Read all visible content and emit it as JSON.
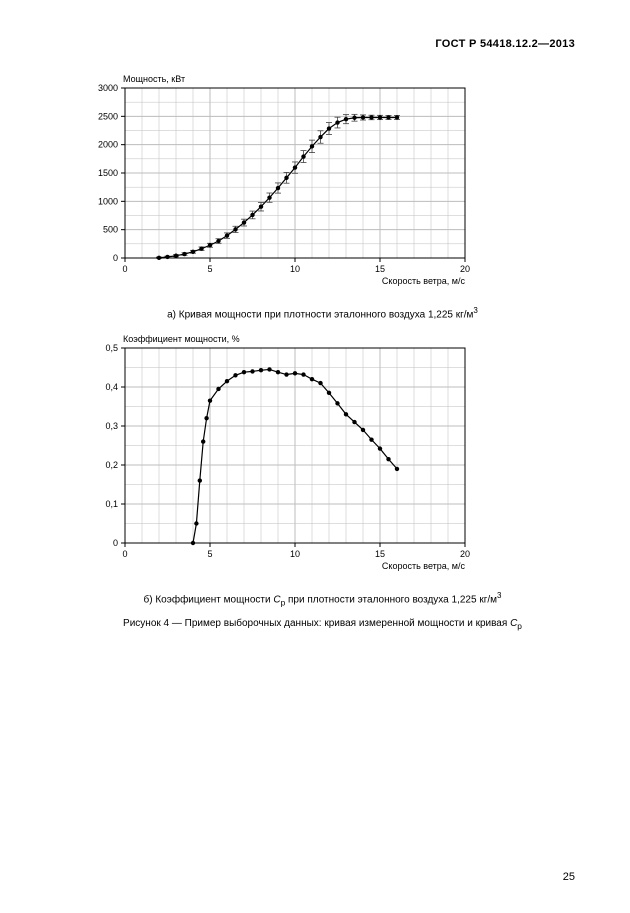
{
  "header": "ГОСТ Р 54418.12.2—2013",
  "page_number": "25",
  "chartA": {
    "type": "line",
    "ylabel": "Мощность, кВт",
    "xlabel": "Скорость ветра, м/с",
    "xlim": [
      0,
      20
    ],
    "ylim": [
      0,
      3000
    ],
    "x_major_ticks": [
      0,
      5,
      10,
      15,
      20
    ],
    "x_minor_step": 1,
    "y_major_ticks": [
      0,
      500,
      1000,
      1500,
      2000,
      2500,
      3000
    ],
    "y_minor_step": 250,
    "grid_color": "#bdbdbd",
    "axis_color": "#000000",
    "background_color": "#ffffff",
    "series_color": "#000000",
    "line_width": 1.2,
    "marker": "circle",
    "marker_size": 2.2,
    "error_bar_color": "#404040",
    "error_bar_cap": 3,
    "label_fontsize": 9,
    "tick_fontsize": 9,
    "data": [
      {
        "x": 2.0,
        "y": 4,
        "err": 12
      },
      {
        "x": 2.5,
        "y": 18,
        "err": 15
      },
      {
        "x": 3.0,
        "y": 40,
        "err": 18
      },
      {
        "x": 3.5,
        "y": 70,
        "err": 22
      },
      {
        "x": 4.0,
        "y": 110,
        "err": 25
      },
      {
        "x": 4.5,
        "y": 165,
        "err": 30
      },
      {
        "x": 5.0,
        "y": 225,
        "err": 35
      },
      {
        "x": 5.5,
        "y": 300,
        "err": 40
      },
      {
        "x": 6.0,
        "y": 395,
        "err": 48
      },
      {
        "x": 6.5,
        "y": 505,
        "err": 55
      },
      {
        "x": 7.0,
        "y": 625,
        "err": 60
      },
      {
        "x": 7.5,
        "y": 760,
        "err": 68
      },
      {
        "x": 8.0,
        "y": 905,
        "err": 75
      },
      {
        "x": 8.5,
        "y": 1065,
        "err": 82
      },
      {
        "x": 9.0,
        "y": 1235,
        "err": 90
      },
      {
        "x": 9.5,
        "y": 1415,
        "err": 95
      },
      {
        "x": 10.0,
        "y": 1595,
        "err": 100
      },
      {
        "x": 10.5,
        "y": 1790,
        "err": 105
      },
      {
        "x": 11.0,
        "y": 1970,
        "err": 110
      },
      {
        "x": 11.5,
        "y": 2135,
        "err": 110
      },
      {
        "x": 12.0,
        "y": 2285,
        "err": 105
      },
      {
        "x": 12.5,
        "y": 2390,
        "err": 95
      },
      {
        "x": 13.0,
        "y": 2450,
        "err": 80
      },
      {
        "x": 13.5,
        "y": 2475,
        "err": 60
      },
      {
        "x": 14.0,
        "y": 2480,
        "err": 45
      },
      {
        "x": 14.5,
        "y": 2480,
        "err": 40
      },
      {
        "x": 15.0,
        "y": 2480,
        "err": 38
      },
      {
        "x": 15.5,
        "y": 2480,
        "err": 35
      },
      {
        "x": 16.0,
        "y": 2480,
        "err": 35
      }
    ],
    "subcaption_prefix": "a) Кривая мощности при плотности эталонного воздуха 1,225 кг/м",
    "subcaption_sup": "3"
  },
  "chartB": {
    "type": "line",
    "ylabel": "Коэффициент мощности, %",
    "xlabel": "Скорость ветра, м/с",
    "xlim": [
      0,
      20
    ],
    "ylim": [
      0,
      0.5
    ],
    "x_major_ticks": [
      0,
      5,
      10,
      15,
      20
    ],
    "x_minor_step": 1,
    "y_major_ticks": [
      0,
      0.1,
      0.2,
      0.3,
      0.4,
      0.5
    ],
    "y_minor_step": 0.05,
    "grid_color": "#bdbdbd",
    "axis_color": "#000000",
    "background_color": "#ffffff",
    "series_color": "#000000",
    "line_width": 1.2,
    "marker": "circle",
    "marker_size": 2.2,
    "label_fontsize": 9,
    "tick_fontsize": 9,
    "data": [
      {
        "x": 4.0,
        "y": 0.0
      },
      {
        "x": 4.2,
        "y": 0.05
      },
      {
        "x": 4.4,
        "y": 0.16
      },
      {
        "x": 4.6,
        "y": 0.26
      },
      {
        "x": 4.8,
        "y": 0.32
      },
      {
        "x": 5.0,
        "y": 0.365
      },
      {
        "x": 5.5,
        "y": 0.395
      },
      {
        "x": 6.0,
        "y": 0.415
      },
      {
        "x": 6.5,
        "y": 0.43
      },
      {
        "x": 7.0,
        "y": 0.438
      },
      {
        "x": 7.5,
        "y": 0.44
      },
      {
        "x": 8.0,
        "y": 0.443
      },
      {
        "x": 8.5,
        "y": 0.445
      },
      {
        "x": 9.0,
        "y": 0.438
      },
      {
        "x": 9.5,
        "y": 0.432
      },
      {
        "x": 10.0,
        "y": 0.435
      },
      {
        "x": 10.5,
        "y": 0.432
      },
      {
        "x": 11.0,
        "y": 0.42
      },
      {
        "x": 11.5,
        "y": 0.41
      },
      {
        "x": 12.0,
        "y": 0.385
      },
      {
        "x": 12.5,
        "y": 0.358
      },
      {
        "x": 13.0,
        "y": 0.33
      },
      {
        "x": 13.5,
        "y": 0.31
      },
      {
        "x": 14.0,
        "y": 0.29
      },
      {
        "x": 14.5,
        "y": 0.265
      },
      {
        "x": 15.0,
        "y": 0.242
      },
      {
        "x": 15.5,
        "y": 0.215
      },
      {
        "x": 16.0,
        "y": 0.19
      }
    ],
    "subcaption_html": "б) Коэффициент мощности <i>C</i><sub>p</sub> при плотности эталонного воздуха 1,225 кг/м<sup>3</sup>"
  },
  "figure_caption_html": "Рисунок 4 — Пример выборочных данных: кривая измеренной мощности и кривая <i>C</i><sub>p</sub>"
}
